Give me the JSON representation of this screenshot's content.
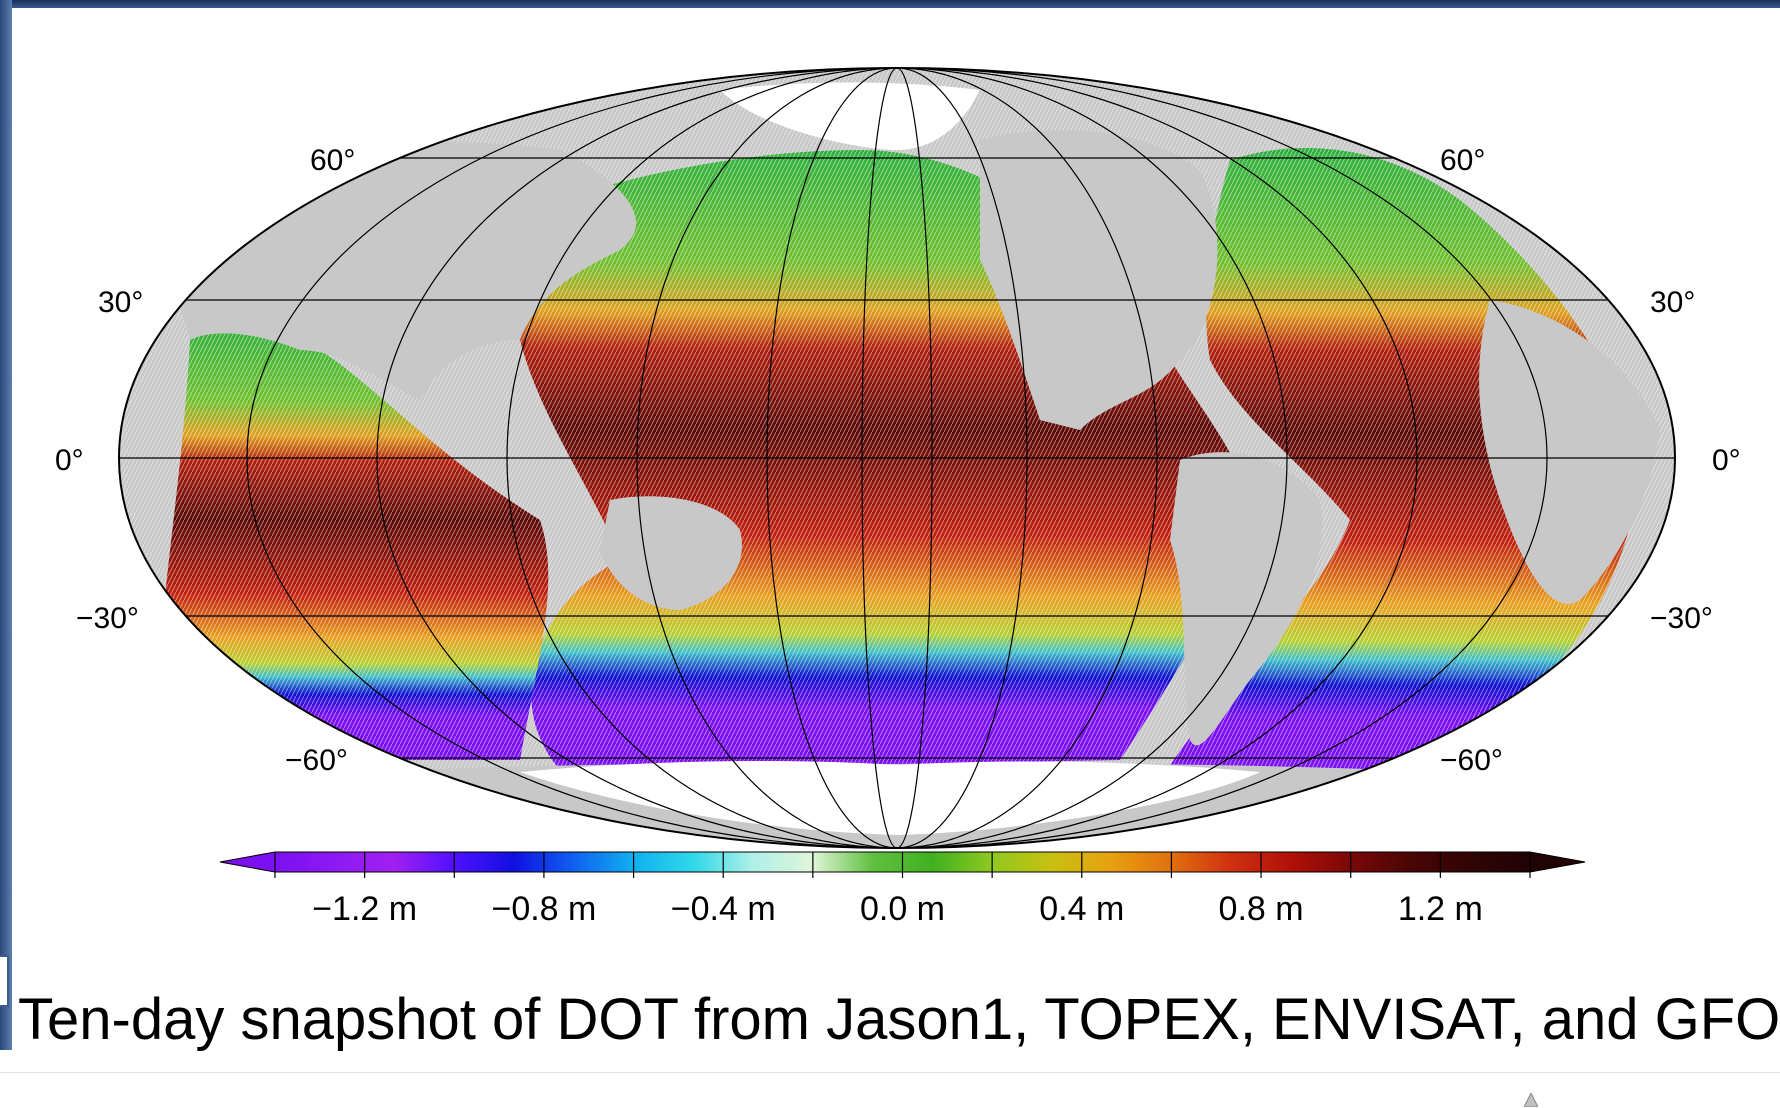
{
  "map": {
    "projection": "Mollweide",
    "land_color": "#c8c8c8",
    "ice_color": "#ffffff",
    "graticule_color": "#000000",
    "latitude_labels": [
      "60°",
      "30°",
      "0°",
      "−30°",
      "−60°"
    ],
    "latitudes": [
      60,
      30,
      0,
      -30,
      -60
    ]
  },
  "colorbar": {
    "unit": "m",
    "range": [
      -1.4,
      1.4
    ],
    "tick_labels": [
      "−1.2 m",
      "−0.8 m",
      "−0.4 m",
      "0.0 m",
      "0.4 m",
      "0.8 m",
      "1.2 m"
    ],
    "tick_values": [
      -1.2,
      -0.8,
      -0.4,
      0.0,
      0.4,
      0.8,
      1.2
    ],
    "colors": [
      "#7b10f0",
      "#8d1af5",
      "#a020f0",
      "#5010ff",
      "#1010e0",
      "#1060f0",
      "#10b0f0",
      "#30d8e8",
      "#b0f0e8",
      "#e0f5d8",
      "#60c040",
      "#40b020",
      "#90c820",
      "#c8c010",
      "#e8a010",
      "#e07010",
      "#d03010",
      "#b01008",
      "#7a0808",
      "#4a0505",
      "#300404",
      "#200303"
    ],
    "extend": "both"
  },
  "caption": "Ten-day snapshot of DOT from Jason1, TOPEX, ENVISAT, and GFO"
}
